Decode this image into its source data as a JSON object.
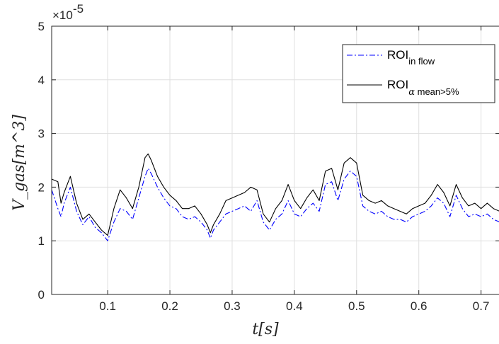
{
  "chart_data": {
    "type": "line",
    "title": "",
    "xlabel": "t[s]",
    "ylabel": "V_gas[m^3]",
    "exponent_label": "×10",
    "exponent_power": "-5",
    "xlim": [
      0.01,
      0.73
    ],
    "ylim": [
      0,
      5
    ],
    "x_ticks": [
      0.1,
      0.2,
      0.3,
      0.4,
      0.5,
      0.6,
      0.7
    ],
    "x_tick_labels": [
      "0.1",
      "0.2",
      "0.3",
      "0.4",
      "0.5",
      "0.6",
      "0.7"
    ],
    "y_ticks": [
      0,
      1,
      2,
      3,
      4,
      5
    ],
    "y_tick_labels": [
      "0",
      "1",
      "2",
      "3",
      "4",
      "5"
    ],
    "grid": true,
    "legend_position": "top-right",
    "legend_parts": {
      "in_flow_main": "ROI",
      "in_flow_sub": "in flow",
      "alpha_main": "ROI",
      "alpha_sub_symbol": "α",
      "alpha_sub_text": " mean>5%"
    },
    "series": [
      {
        "name": "ROI in flow",
        "color": "#0000ff",
        "style": "dash-dot",
        "x": [
          0.01,
          0.02,
          0.025,
          0.03,
          0.04,
          0.05,
          0.06,
          0.07,
          0.08,
          0.09,
          0.1,
          0.11,
          0.12,
          0.13,
          0.14,
          0.15,
          0.16,
          0.165,
          0.17,
          0.18,
          0.19,
          0.2,
          0.21,
          0.22,
          0.23,
          0.24,
          0.25,
          0.26,
          0.265,
          0.27,
          0.28,
          0.29,
          0.3,
          0.31,
          0.32,
          0.33,
          0.34,
          0.35,
          0.36,
          0.37,
          0.38,
          0.39,
          0.4,
          0.41,
          0.42,
          0.43,
          0.44,
          0.45,
          0.46,
          0.47,
          0.48,
          0.49,
          0.5,
          0.51,
          0.52,
          0.53,
          0.54,
          0.55,
          0.56,
          0.57,
          0.58,
          0.59,
          0.6,
          0.61,
          0.62,
          0.63,
          0.64,
          0.65,
          0.66,
          0.67,
          0.68,
          0.69,
          0.7,
          0.71,
          0.72,
          0.73
        ],
        "y": [
          1.95,
          1.6,
          1.45,
          1.7,
          2.0,
          1.55,
          1.3,
          1.45,
          1.25,
          1.15,
          1.0,
          1.35,
          1.6,
          1.55,
          1.4,
          1.8,
          2.2,
          2.35,
          2.25,
          2.0,
          1.8,
          1.65,
          1.6,
          1.45,
          1.4,
          1.45,
          1.35,
          1.2,
          1.05,
          1.2,
          1.35,
          1.5,
          1.55,
          1.6,
          1.65,
          1.55,
          1.75,
          1.35,
          1.2,
          1.4,
          1.5,
          1.75,
          1.5,
          1.45,
          1.6,
          1.7,
          1.55,
          2.05,
          2.1,
          1.75,
          2.15,
          2.3,
          2.2,
          1.65,
          1.55,
          1.5,
          1.55,
          1.45,
          1.4,
          1.4,
          1.35,
          1.45,
          1.5,
          1.55,
          1.65,
          1.8,
          1.7,
          1.45,
          1.85,
          1.6,
          1.45,
          1.5,
          1.45,
          1.5,
          1.4,
          1.35
        ]
      },
      {
        "name": "ROI α mean>5%",
        "color": "#000000",
        "style": "solid",
        "x": [
          0.01,
          0.02,
          0.025,
          0.03,
          0.04,
          0.05,
          0.06,
          0.07,
          0.08,
          0.09,
          0.1,
          0.11,
          0.12,
          0.13,
          0.14,
          0.15,
          0.16,
          0.165,
          0.17,
          0.18,
          0.19,
          0.2,
          0.21,
          0.22,
          0.23,
          0.24,
          0.25,
          0.26,
          0.265,
          0.27,
          0.28,
          0.29,
          0.3,
          0.31,
          0.32,
          0.33,
          0.34,
          0.35,
          0.36,
          0.37,
          0.38,
          0.39,
          0.4,
          0.41,
          0.42,
          0.43,
          0.44,
          0.45,
          0.46,
          0.47,
          0.48,
          0.49,
          0.5,
          0.51,
          0.52,
          0.53,
          0.54,
          0.55,
          0.56,
          0.57,
          0.58,
          0.59,
          0.6,
          0.61,
          0.62,
          0.63,
          0.64,
          0.65,
          0.66,
          0.67,
          0.68,
          0.69,
          0.7,
          0.71,
          0.72,
          0.73
        ],
        "y": [
          2.15,
          2.1,
          1.7,
          1.9,
          2.2,
          1.7,
          1.4,
          1.5,
          1.35,
          1.2,
          1.1,
          1.6,
          1.95,
          1.8,
          1.6,
          2.0,
          2.55,
          2.62,
          2.5,
          2.2,
          2.0,
          1.85,
          1.75,
          1.6,
          1.6,
          1.65,
          1.5,
          1.3,
          1.15,
          1.3,
          1.5,
          1.75,
          1.8,
          1.85,
          1.9,
          2.0,
          1.95,
          1.5,
          1.35,
          1.6,
          1.75,
          2.05,
          1.75,
          1.6,
          1.8,
          1.95,
          1.75,
          2.3,
          2.35,
          1.95,
          2.45,
          2.55,
          2.45,
          1.85,
          1.75,
          1.7,
          1.75,
          1.65,
          1.6,
          1.55,
          1.5,
          1.6,
          1.65,
          1.7,
          1.85,
          2.05,
          1.9,
          1.65,
          2.05,
          1.8,
          1.65,
          1.7,
          1.6,
          1.7,
          1.6,
          1.55
        ]
      }
    ]
  }
}
